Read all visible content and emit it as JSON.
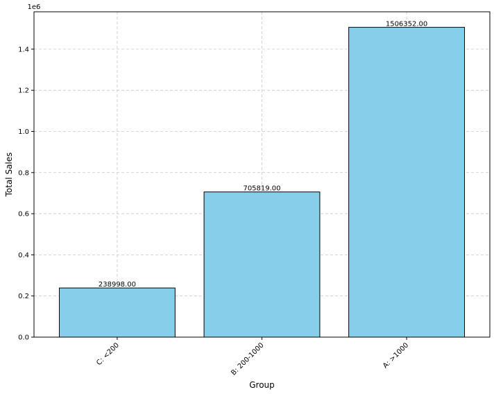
{
  "chart_data": {
    "type": "bar",
    "categories": [
      "C: <200",
      "B: 200-1000",
      "A: >1000"
    ],
    "values": [
      238998.0,
      705819.0,
      1506352.0
    ],
    "value_labels": [
      "238998.00",
      "705819.00",
      "1506352.00"
    ],
    "xlabel": "Group",
    "ylabel": "Total Sales",
    "y_offset_label": "1e6",
    "ylim": [
      0,
      1581670
    ],
    "yticks": [
      0,
      200000,
      400000,
      600000,
      800000,
      1000000,
      1200000,
      1400000
    ],
    "ytick_labels": [
      "0.0",
      "0.2",
      "0.4",
      "0.6",
      "0.8",
      "1.0",
      "1.2",
      "1.4"
    ],
    "x_tick_rotation": -45,
    "grid": true,
    "bar_color": "#87ceeb",
    "bar_edge_color": "#000000"
  }
}
